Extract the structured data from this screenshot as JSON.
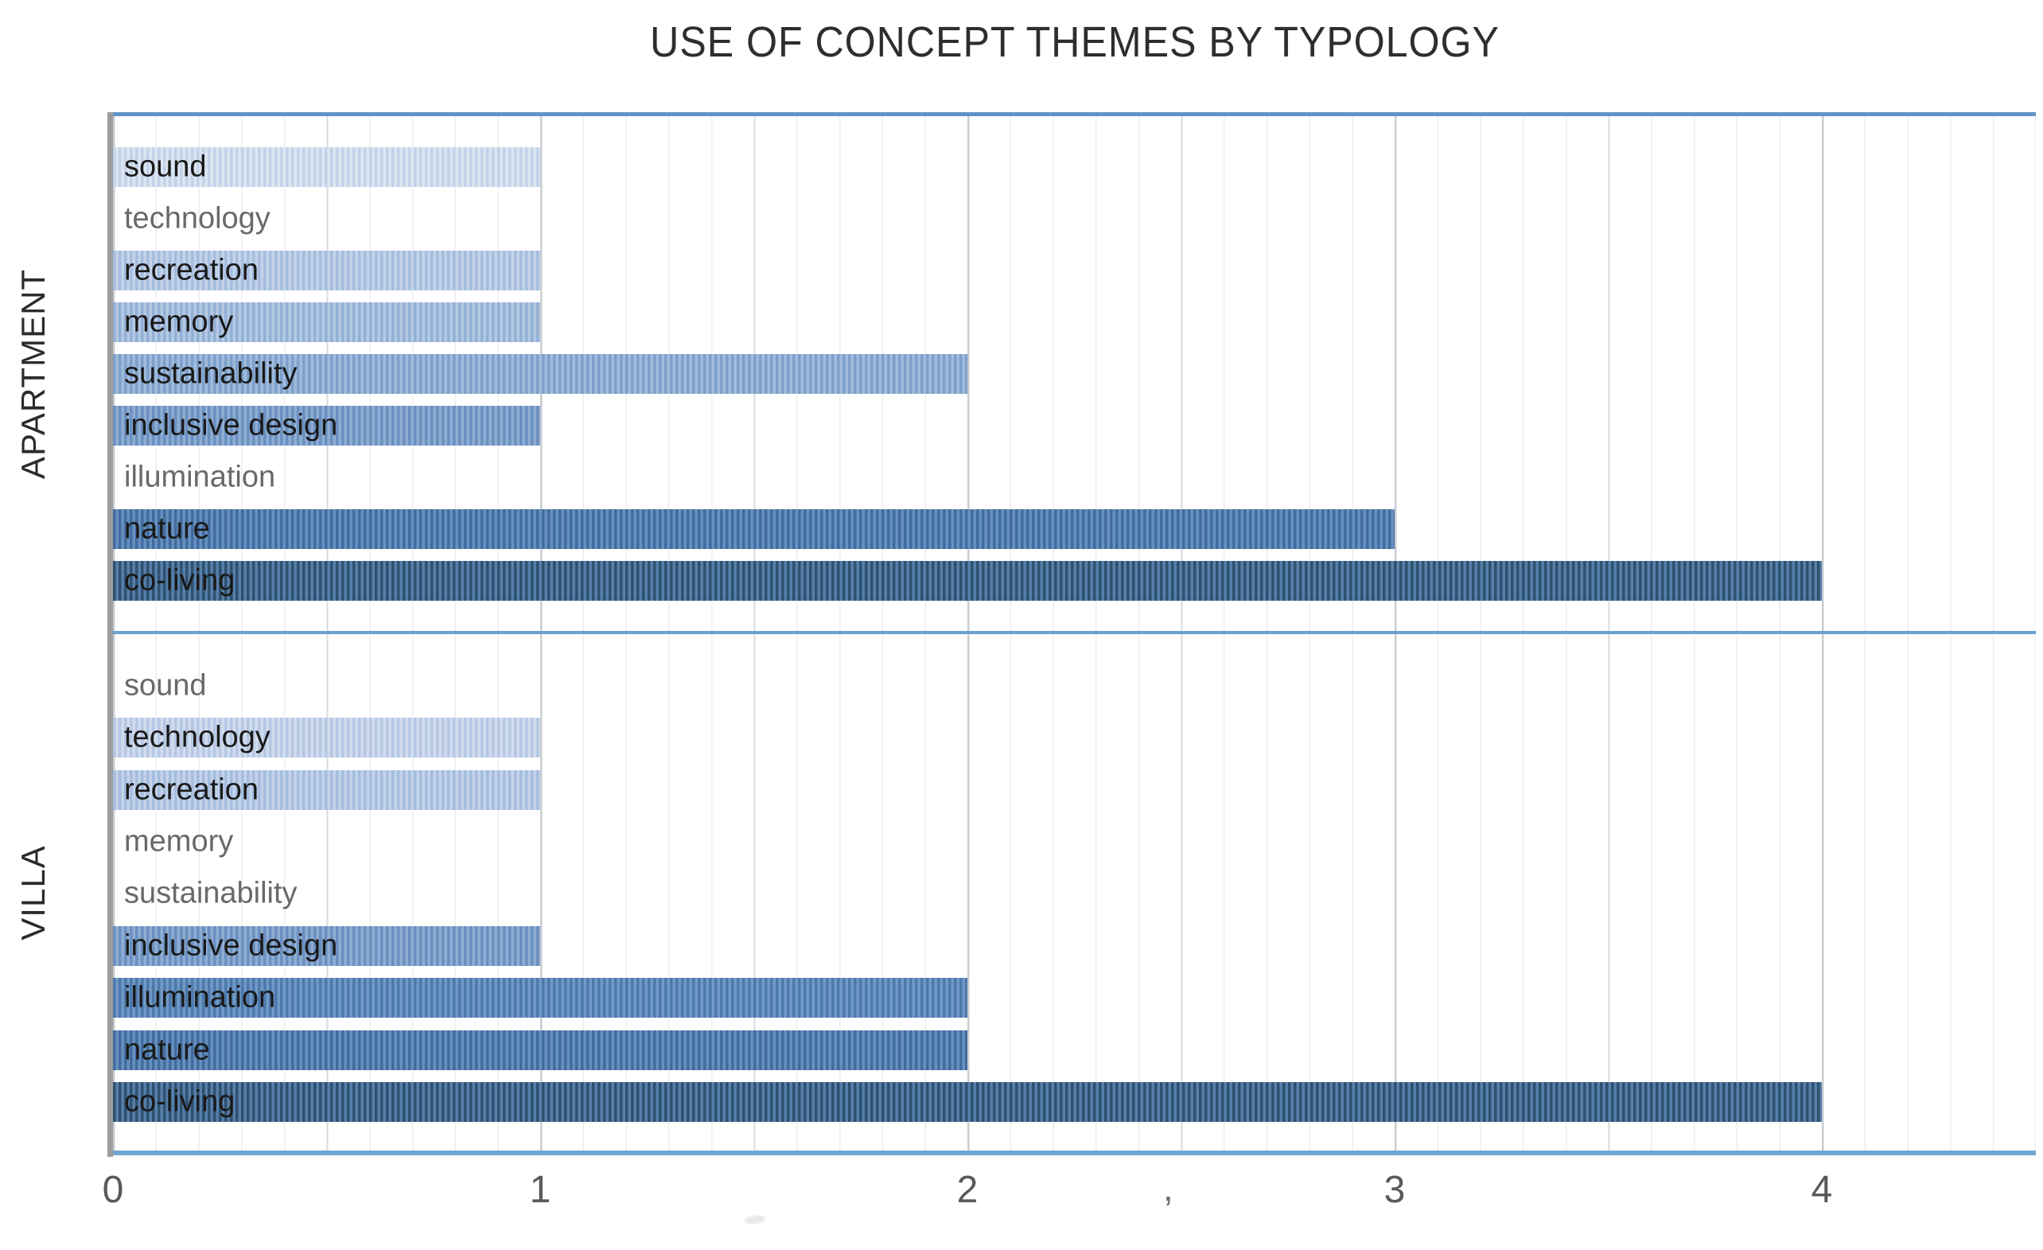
{
  "title": "USE OF CONCEPT THEMES BY TYPOLOGY",
  "chart_data": {
    "type": "bar",
    "orientation": "horizontal",
    "title": "USE OF CONCEPT THEMES BY TYPOLOGY",
    "xlabel": "",
    "ylabel": "",
    "xlim": [
      0,
      4.5
    ],
    "x_ticks": [
      0,
      1,
      2,
      3,
      4
    ],
    "gridlines": {
      "minor_step": 0.1,
      "medium_step": 0.5,
      "major_step": 1
    },
    "themes": [
      "sound",
      "technology",
      "recreation",
      "memory",
      "sustainability",
      "inclusive design",
      "illumination",
      "nature",
      "co-living"
    ],
    "groups": [
      {
        "label": "APARTMENT",
        "values": [
          1,
          0,
          1,
          1,
          2,
          1,
          0,
          3,
          4
        ]
      },
      {
        "label": "VILLA",
        "values": [
          0,
          1,
          1,
          0,
          0,
          1,
          2,
          2,
          4
        ]
      }
    ],
    "theme_colors": [
      {
        "theme": "sound",
        "base": "#dce6f2",
        "stripe": "#c3d2e8"
      },
      {
        "theme": "technology",
        "base": "#d1dcee",
        "stripe": "#b5c7e3"
      },
      {
        "theme": "recreation",
        "base": "#c3d3ea",
        "stripe": "#a5bdde"
      },
      {
        "theme": "memory",
        "base": "#b4c9e4",
        "stripe": "#93b0d5"
      },
      {
        "theme": "sustainability",
        "base": "#a0bbdc",
        "stripe": "#7da0ca"
      },
      {
        "theme": "inclusive design",
        "base": "#8fadd3",
        "stripe": "#6a90c0"
      },
      {
        "theme": "illumination",
        "base": "#7099c7",
        "stripe": "#4d79ab"
      },
      {
        "theme": "nature",
        "base": "#6590bf",
        "stripe": "#426c9d"
      },
      {
        "theme": "co-living",
        "base": "#567fa9",
        "stripe": "#2f5170"
      }
    ],
    "frame_colors": {
      "top_border": "#5f93c5",
      "section_divider": "#6ba0cf",
      "bottom_axis": "#70a5d2",
      "left_edge": "#9d9d9d"
    }
  },
  "stray_marks": {
    "comma": ","
  }
}
